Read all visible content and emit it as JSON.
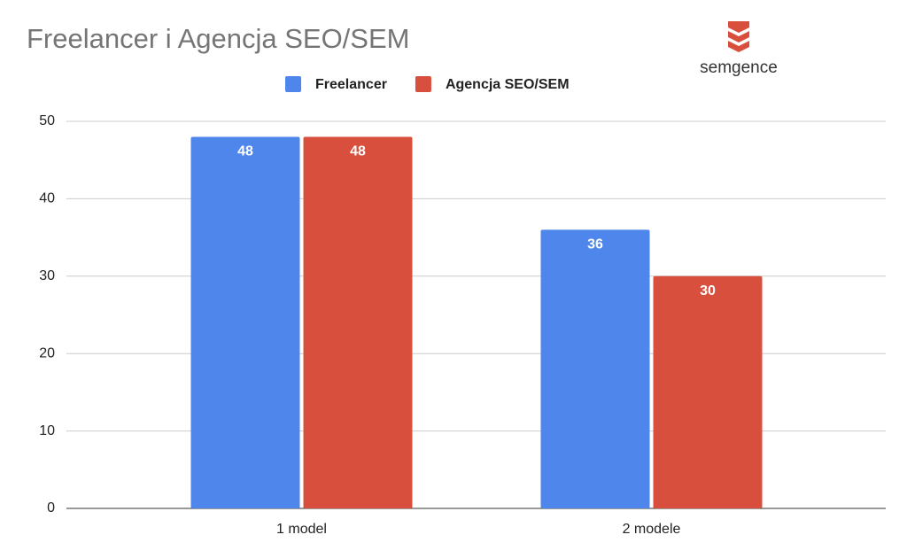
{
  "brand": "semgence",
  "chart_data": {
    "type": "bar",
    "title": "Freelancer i Agencja SEO/SEM",
    "categories": [
      "1 model",
      "2 modele"
    ],
    "series": [
      {
        "name": "Freelancer",
        "color": "#4f86ec",
        "values": [
          48,
          36
        ]
      },
      {
        "name": "Agencja SEO/SEM",
        "color": "#d94f3d",
        "values": [
          48,
          30
        ]
      }
    ],
    "ylim": [
      0,
      50
    ],
    "yticks": [
      0,
      10,
      20,
      30,
      40,
      50
    ],
    "grid": true,
    "legend": "top"
  }
}
